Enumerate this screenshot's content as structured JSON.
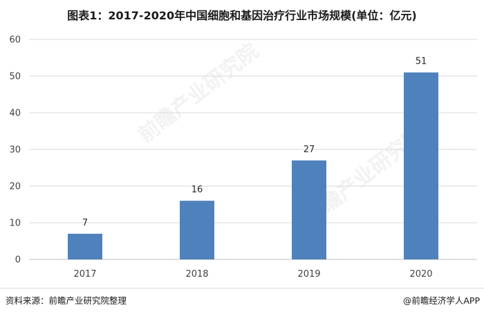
{
  "title": "图表1：2017-2020年中国细胞和基因治疗行业市场规模(单位：亿元)",
  "footer": {
    "source": "资料来源：前瞻产业研究院整理",
    "brand": "@前瞻经济学人APP"
  },
  "watermark": "前瞻产业研究院",
  "colors": {
    "bar": "#4f81bd",
    "gridline": "#d9d9d9",
    "axis": "#bfbfbf"
  },
  "chart_data": {
    "type": "bar",
    "title": "图表1：2017-2020年中国细胞和基因治疗行业市场规模(单位：亿元)",
    "categories": [
      "2017",
      "2018",
      "2019",
      "2020"
    ],
    "values": [
      7,
      16,
      27,
      51
    ],
    "data_labels": [
      "7",
      "16",
      "27",
      "51"
    ],
    "xlabel": "",
    "ylabel": "",
    "ylim": [
      0,
      60
    ],
    "yticks": [
      0,
      10,
      20,
      30,
      40,
      50,
      60
    ],
    "grid": true,
    "legend": "none"
  }
}
